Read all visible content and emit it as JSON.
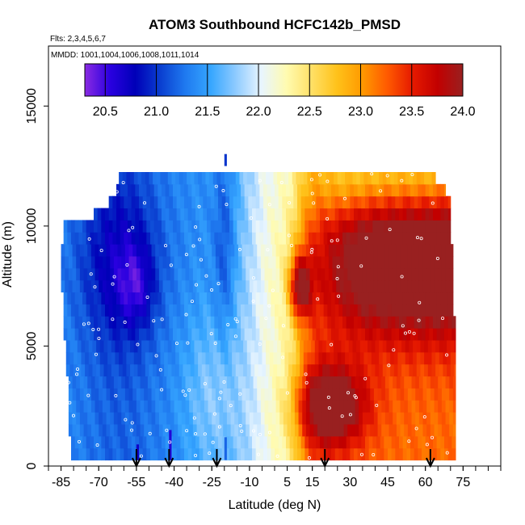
{
  "chart_data": {
    "type": "heatmap",
    "title": "ATOM3 Southbound HCFC142b_PMSD",
    "subtitle_flights": "Flts: 2,3,4,5,6,7",
    "subtitle_dates": "MMDD: 1001,1004,1006,1008,1011,1014",
    "xlabel": "Latitude (deg N)",
    "ylabel": "Altitude (m)",
    "xlim": [
      -90,
      90
    ],
    "ylim": [
      0,
      17500
    ],
    "xticks": [
      -85,
      -70,
      -55,
      -40,
      -25,
      -10,
      5,
      15,
      30,
      45,
      60,
      75
    ],
    "xtick_labels": [
      "-85",
      "-70",
      "-55",
      "-40",
      "-25",
      "-10",
      "5",
      "15",
      "30",
      "45",
      "60",
      "75"
    ],
    "xminor_step": 5,
    "yticks": [
      0,
      5000,
      10000,
      15000
    ],
    "ytick_labels": [
      "0",
      "5000",
      "10000",
      "15000"
    ],
    "colorbar": {
      "min": 20.3,
      "max": 24.0,
      "ticks": [
        20.5,
        21.0,
        21.5,
        22.0,
        22.5,
        23.0,
        23.5,
        24.0
      ],
      "tick_labels": [
        "20.5",
        "21.0",
        "21.5",
        "22.0",
        "22.5",
        "23.0",
        "23.5",
        "24.0"
      ],
      "colors": [
        "#8a2be2",
        "#2a00e0",
        "#0000b8",
        "#0a3fd0",
        "#1f7af0",
        "#36a6ff",
        "#8fcbff",
        "#e8f5ff",
        "#fffbb0",
        "#ffe066",
        "#ffc21a",
        "#ff9a00",
        "#ff5a00",
        "#e61a00",
        "#c20000",
        "#992020"
      ]
    },
    "altitude_levels": [
      500,
      1000,
      1500,
      2000,
      2500,
      3000,
      3500,
      4000,
      4500,
      5000,
      5500,
      6000,
      6500,
      7000,
      7500,
      8000,
      8500,
      9000,
      9500,
      10000,
      10500,
      11000,
      11500,
      12000
    ],
    "lat_extent_by_level": [
      [
        -81,
        72
      ],
      [
        -81,
        72
      ],
      [
        -82,
        72
      ],
      [
        -82,
        72
      ],
      [
        -82,
        72
      ],
      [
        -82,
        72
      ],
      [
        -82,
        72
      ],
      [
        -83,
        72
      ],
      [
        -83,
        72
      ],
      [
        -83,
        72
      ],
      [
        -84,
        72
      ],
      [
        -84,
        72
      ],
      [
        -84,
        71
      ],
      [
        -84,
        71
      ],
      [
        -85,
        71
      ],
      [
        -85,
        71
      ],
      [
        -85,
        71
      ],
      [
        -85,
        71
      ],
      [
        -84,
        70
      ],
      [
        -84,
        70
      ],
      [
        -72,
        70
      ],
      [
        -66,
        70
      ],
      [
        -63,
        68
      ],
      [
        -62,
        64
      ]
    ],
    "arrow_latitudes": [
      -55,
      -42,
      -23,
      20,
      62
    ],
    "arrow_label": ""
  }
}
